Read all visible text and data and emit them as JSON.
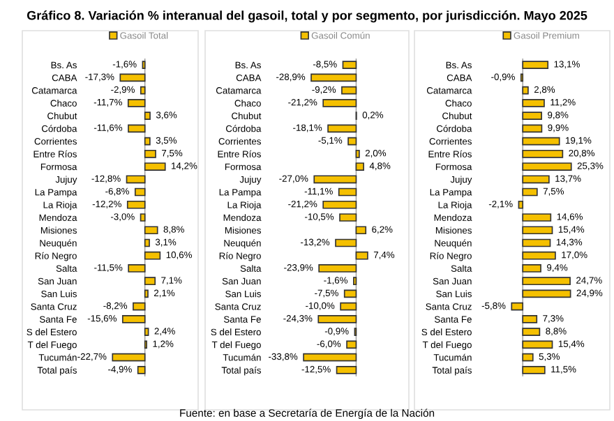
{
  "chart_data": [
    {
      "type": "bar",
      "orientation": "horizontal",
      "title": "Gráfico 8. Variación % interanual del gasoil, total y por segmento, por jurisdicción. Mayo 2025",
      "categories": [
        "Bs. As",
        "CABA",
        "Catamarca",
        "Chaco",
        "Chubut",
        "Córdoba",
        "Corrientes",
        "Entre Ríos",
        "Formosa",
        "Jujuy",
        "La Pampa",
        "La Rioja",
        "Mendoza",
        "Misiones",
        "Neuquén",
        "Río Negro",
        "Salta",
        "San Juan",
        "San Luis",
        "Santa Cruz",
        "Santa Fe",
        "S del Estero",
        "T del Fuego",
        "Tucumán",
        "Total país"
      ],
      "series": [
        {
          "name": "Gasoil Total",
          "color": "#f5c000",
          "values": [
            -1.6,
            -17.3,
            -2.9,
            -11.7,
            3.6,
            -11.6,
            3.5,
            7.5,
            14.2,
            -12.8,
            -6.8,
            -12.2,
            -3.0,
            8.8,
            3.1,
            10.6,
            -11.5,
            7.1,
            2.1,
            -8.2,
            -15.6,
            2.4,
            1.2,
            -22.7,
            -4.9
          ],
          "value_labels": [
            "-1,6%",
            "-17,3%",
            "-2,9%",
            "-11,7%",
            "3,6%",
            "-11,6%",
            "3,5%",
            "7,5%",
            "14,2%",
            "-12,8%",
            "-6,8%",
            "-12,2%",
            "-3,0%",
            "8,8%",
            "3,1%",
            "10,6%",
            "-11,5%",
            "7,1%",
            "2,1%",
            "-8,2%",
            "-15,6%",
            "2,4%",
            "1,2%",
            "-22,7%",
            "-4,9%"
          ]
        }
      ],
      "legend": "top",
      "tick_labels": "y",
      "grid": false
    },
    {
      "type": "bar",
      "orientation": "horizontal",
      "categories": [
        "Bs. As",
        "CABA",
        "Catamarca",
        "Chaco",
        "Chubut",
        "Córdoba",
        "Corrientes",
        "Entre Ríos",
        "Formosa",
        "Jujuy",
        "La Pampa",
        "La Rioja",
        "Mendoza",
        "Misiones",
        "Neuquén",
        "Río Negro",
        "Salta",
        "San Juan",
        "San Luis",
        "Santa Cruz",
        "Santa Fe",
        "S del Estero",
        "T del Fuego",
        "Tucumán",
        "Total país"
      ],
      "series": [
        {
          "name": "Gasoil Común",
          "color": "#f5c000",
          "values": [
            -8.5,
            -28.9,
            -9.2,
            -21.2,
            0.2,
            -18.1,
            -5.1,
            2.0,
            4.8,
            -27.0,
            -11.1,
            -21.2,
            -10.5,
            6.2,
            -13.2,
            7.4,
            -23.9,
            -1.6,
            -7.5,
            -10.0,
            -24.3,
            -0.9,
            -6.0,
            -33.8,
            -12.5
          ],
          "value_labels": [
            "-8,5%",
            "-28,9%",
            "-9,2%",
            "-21,2%",
            "0,2%",
            "-18,1%",
            "-5,1%",
            "2,0%",
            "4,8%",
            "-27,0%",
            "-11,1%",
            "-21,2%",
            "-10,5%",
            "6,2%",
            "-13,2%",
            "7,4%",
            "-23,9%",
            "-1,6%",
            "-7,5%",
            "-10,0%",
            "-24,3%",
            "-0,9%",
            "-6,0%",
            "-33,8%",
            "-12,5%"
          ]
        }
      ],
      "legend": "top",
      "tick_labels": "y",
      "grid": false
    },
    {
      "type": "bar",
      "orientation": "horizontal",
      "categories": [
        "Bs. As",
        "CABA",
        "Catamarca",
        "Chaco",
        "Chubut",
        "Córdoba",
        "Corrientes",
        "Entre Ríos",
        "Formosa",
        "Jujuy",
        "La Pampa",
        "La Rioja",
        "Mendoza",
        "Misiones",
        "Neuquén",
        "Río Negro",
        "Salta",
        "San Juan",
        "San Luis",
        "Santa Cruz",
        "Santa Fe",
        "S del Estero",
        "T del Fuego",
        "Tucumán",
        "Total país"
      ],
      "series": [
        {
          "name": "Gasoil Premium",
          "color": "#f5c000",
          "values": [
            13.1,
            -0.9,
            2.8,
            11.2,
            9.8,
            9.9,
            19.1,
            20.8,
            25.3,
            13.7,
            7.5,
            -2.1,
            14.6,
            15.4,
            14.3,
            17.0,
            9.4,
            24.7,
            24.9,
            -5.8,
            7.3,
            8.8,
            15.4,
            5.3,
            11.5
          ],
          "value_labels": [
            "13,1%",
            "-0,9%",
            "2,8%",
            "11,2%",
            "9,8%",
            "9,9%",
            "19,1%",
            "20,8%",
            "25,3%",
            "13,7%",
            "7,5%",
            "-2,1%",
            "14,6%",
            "15,4%",
            "14,3%",
            "17,0%",
            "9,4%",
            "24,7%",
            "24,9%",
            "-5,8%",
            "7,3%",
            "8,8%",
            "15,4%",
            "5,3%",
            "11,5%"
          ]
        }
      ],
      "legend": "top",
      "tick_labels": "y",
      "grid": false,
      "annotations": [
        "Fuente: en base a Secretaría de Energía de la Nación"
      ]
    }
  ]
}
